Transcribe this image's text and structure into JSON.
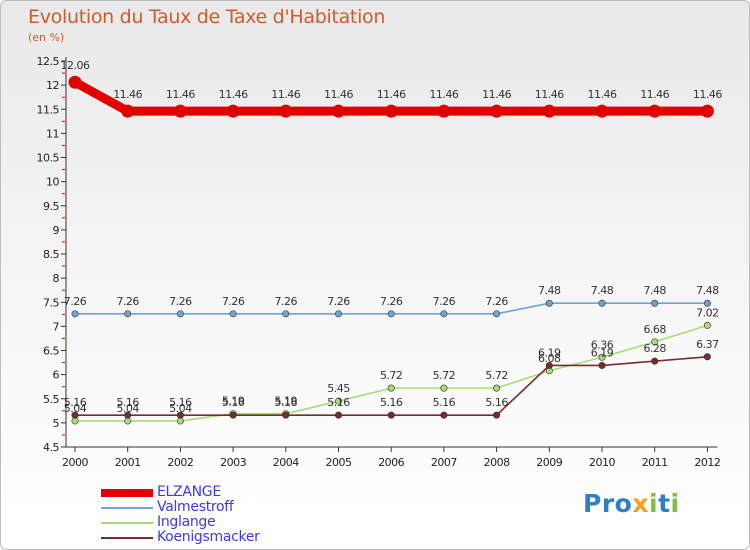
{
  "chart_data": {
    "type": "line",
    "title": "Evolution du Taux de Taxe d'Habitation",
    "subtitle": "(en %)",
    "xlabel": "",
    "ylabel": "",
    "ylim": [
      4.5,
      12.5
    ],
    "yticks": [
      "4.5",
      "5",
      "5.5",
      "6",
      "6.5",
      "7",
      "7.5",
      "8",
      "8.5",
      "9",
      "9.5",
      "10",
      "10.5",
      "11",
      "11.5",
      "12",
      "12.5"
    ],
    "categories": [
      "2000",
      "2001",
      "2002",
      "2003",
      "2004",
      "2005",
      "2006",
      "2007",
      "2008",
      "2009",
      "2010",
      "2011",
      "2012"
    ],
    "series": [
      {
        "name": "ELZANGE",
        "color": "#e00000",
        "values": [
          12.06,
          11.46,
          11.46,
          11.46,
          11.46,
          11.46,
          11.46,
          11.46,
          11.46,
          11.46,
          11.46,
          11.46,
          11.46
        ],
        "labels": [
          "12.06",
          "11.46",
          "11.46",
          "11.46",
          "11.46",
          "11.46",
          "11.46",
          "11.46",
          "11.46",
          "11.46",
          "11.46",
          "11.46",
          "11.46"
        ]
      },
      {
        "name": "Valmestroff",
        "color": "#6fa3d0",
        "values": [
          7.26,
          7.26,
          7.26,
          7.26,
          7.26,
          7.26,
          7.26,
          7.26,
          7.26,
          7.48,
          7.48,
          7.48,
          7.48
        ],
        "labels": [
          "7.26",
          "7.26",
          "7.26",
          "7.26",
          "7.26",
          "7.26",
          "7.26",
          "7.26",
          "7.26",
          "7.48",
          "7.48",
          "7.48",
          "7.48"
        ]
      },
      {
        "name": "Inglange",
        "color": "#a8dc78",
        "values": [
          5.04,
          5.04,
          5.04,
          5.19,
          5.19,
          5.45,
          5.72,
          5.72,
          5.72,
          6.08,
          6.36,
          6.68,
          7.02
        ],
        "labels": [
          "5.04",
          "5.04",
          "5.04",
          "5.19",
          "5.19",
          "5.45",
          "5.72",
          "5.72",
          "5.72",
          "6.08",
          "6.36",
          "6.68",
          "7.02"
        ]
      },
      {
        "name": "Koenigsmacker",
        "color": "#7a2a2a",
        "values": [
          5.16,
          5.16,
          5.16,
          5.16,
          5.16,
          5.16,
          5.16,
          5.16,
          5.16,
          6.19,
          6.19,
          6.28,
          6.37
        ],
        "labels": [
          "5.16",
          "5.16",
          "5.16",
          "5.16",
          "5.16",
          "5.16",
          "5.16",
          "5.16",
          "5.16",
          "6.19",
          "6.19",
          "6.28",
          "6.37"
        ]
      }
    ],
    "legend_position": "bottom-left"
  },
  "brand": {
    "text": "Proxiti",
    "letters": [
      {
        "ch": "P",
        "color": "#2f7fc7"
      },
      {
        "ch": "r",
        "color": "#2f7fc7"
      },
      {
        "ch": "o",
        "color": "#2f7fc7"
      },
      {
        "ch": "x",
        "color": "#f5a01a"
      },
      {
        "ch": "i",
        "color": "#7cc242"
      },
      {
        "ch": "t",
        "color": "#2f7fc7"
      },
      {
        "ch": "i",
        "color": "#7cc242"
      }
    ]
  }
}
